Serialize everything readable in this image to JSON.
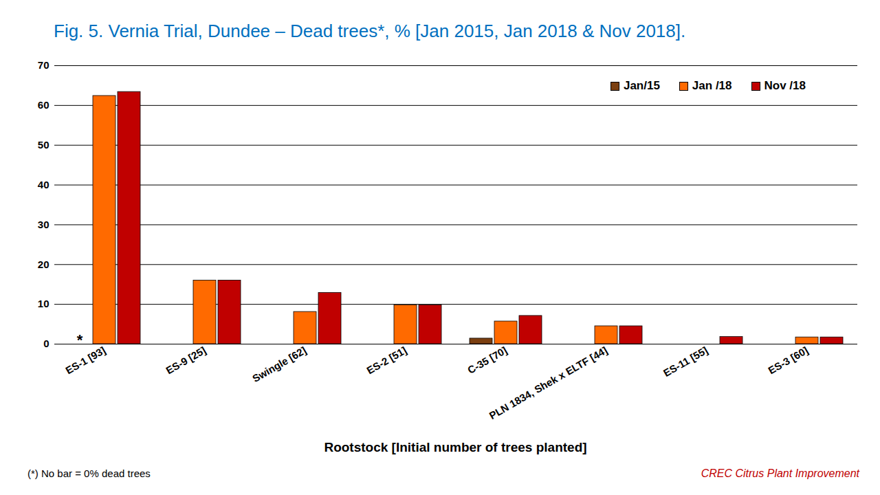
{
  "chart_data": {
    "type": "bar",
    "title": "Fig. 5. Vernia Trial, Dundee – Dead trees*, % [Jan 2015, Jan 2018 & Nov 2018].",
    "x_label": "Rootstock [Initial number of trees planted]",
    "categories": [
      "ES-1 [93]",
      "ES-9 [25]",
      "Swingle [62]",
      "ES-2 [51]",
      "C-35 [70]",
      "PLN 1834, Shek x ELTF [44]",
      "ES-11 [55]",
      "ES-3 [60]"
    ],
    "series": [
      {
        "name": "Jan/15",
        "color": "#7B3F10",
        "values": [
          0,
          0,
          0,
          0,
          1.4,
          0,
          0,
          0
        ]
      },
      {
        "name": "Jan /18",
        "color": "#FF6A00",
        "values": [
          62.4,
          16,
          8.1,
          9.8,
          5.7,
          4.5,
          0,
          1.7
        ]
      },
      {
        "name": "Nov /18",
        "color": "#C00000",
        "values": [
          63.4,
          16,
          12.9,
          9.8,
          7.1,
          4.5,
          1.8,
          1.7
        ]
      }
    ],
    "ylim": [
      0,
      70
    ],
    "yticks": [
      0,
      10,
      20,
      30,
      40,
      50,
      60,
      70
    ],
    "grid": true,
    "legend": "top-right",
    "annotations": [
      {
        "text": "*",
        "x": "ES-1 [93]",
        "y": 0
      }
    ],
    "footnote": "(*) No bar = 0% dead trees",
    "source": "CREC Citrus Plant Improvement"
  }
}
